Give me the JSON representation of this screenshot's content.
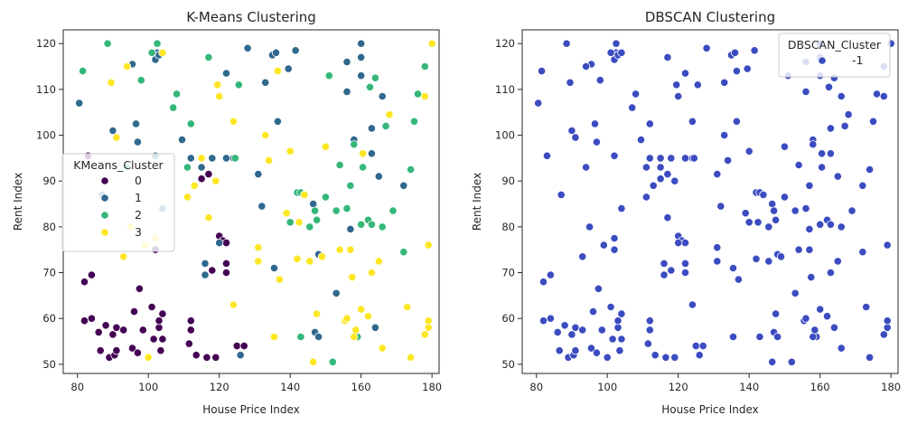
{
  "chart_data": [
    {
      "type": "scatter",
      "title": "K-Means Clustering",
      "xlabel": "House Price Index",
      "ylabel": "Rent Index",
      "xlim": [
        76,
        182
      ],
      "ylim": [
        48,
        123
      ],
      "xticks": [
        80,
        100,
        120,
        140,
        160,
        180
      ],
      "yticks": [
        50,
        60,
        70,
        80,
        90,
        100,
        110,
        120
      ],
      "grid": false,
      "legend": {
        "title": "KMeans_Cluster",
        "placement": "center-left"
      },
      "series": [
        {
          "name": "0",
          "color": "#440154",
          "points": [
            [
              82,
              59.5
            ],
            [
              82,
              68
            ],
            [
              83,
              95.5
            ],
            [
              84,
              60
            ],
            [
              84,
              69.5
            ],
            [
              86,
              57
            ],
            [
              86.5,
              53
            ],
            [
              88,
              58.5
            ],
            [
              89,
              51.5
            ],
            [
              90,
              56.5
            ],
            [
              90.5,
              52
            ],
            [
              91,
              53
            ],
            [
              91,
              58
            ],
            [
              93,
              57.5
            ],
            [
              95.5,
              53.5
            ],
            [
              96,
              61.5
            ],
            [
              97,
              52.5
            ],
            [
              97.5,
              66.5
            ],
            [
              98.5,
              57.5
            ],
            [
              99,
              76
            ],
            [
              101,
              62.5
            ],
            [
              101.5,
              55.5
            ],
            [
              102,
              75
            ],
            [
              103,
              58
            ],
            [
              103,
              59.5
            ],
            [
              103.5,
              53
            ],
            [
              104,
              55.5
            ],
            [
              104,
              61
            ],
            [
              111.5,
              54.5
            ],
            [
              112,
              59.5
            ],
            [
              112,
              57.5
            ],
            [
              113.5,
              52
            ],
            [
              115,
              90.5
            ],
            [
              116.5,
              51.5
            ],
            [
              117,
              91.5
            ],
            [
              118,
              70.5
            ],
            [
              119,
              51.5
            ],
            [
              120,
              78
            ],
            [
              121,
              77
            ],
            [
              122,
              70
            ],
            [
              122,
              72
            ],
            [
              122,
              76.5
            ],
            [
              125,
              54
            ],
            [
              127,
              54
            ]
          ]
        },
        {
          "name": "1",
          "color": "#31688e",
          "points": [
            [
              80.5,
              107
            ],
            [
              87,
              87
            ],
            [
              90,
              101
            ],
            [
              95.5,
              115.5
            ],
            [
              96.5,
              102.5
            ],
            [
              97,
              98.5
            ],
            [
              102,
              95.5
            ],
            [
              102,
              116.5
            ],
            [
              102.5,
              118
            ],
            [
              103,
              117.5
            ],
            [
              104,
              84
            ],
            [
              109.5,
              99
            ],
            [
              112,
              95
            ],
            [
              115,
              93
            ],
            [
              116,
              69.5
            ],
            [
              116,
              72
            ],
            [
              118,
              95
            ],
            [
              120,
              76.5
            ],
            [
              122,
              95
            ],
            [
              122,
              113.5
            ],
            [
              124,
              95
            ],
            [
              126,
              52
            ],
            [
              128,
              119
            ],
            [
              131,
              91.5
            ],
            [
              132,
              84.5
            ],
            [
              133,
              111.5
            ],
            [
              135,
              117.5
            ],
            [
              135.5,
              71
            ],
            [
              136.5,
              103
            ],
            [
              136,
              118
            ],
            [
              139.5,
              114.5
            ],
            [
              141.5,
              118.5
            ],
            [
              146.5,
              85
            ],
            [
              147,
              57
            ],
            [
              148,
              56
            ],
            [
              148,
              74
            ],
            [
              153,
              65.5
            ],
            [
              156,
              116
            ],
            [
              156,
              109.5
            ],
            [
              157,
              79.5
            ],
            [
              158,
              99
            ],
            [
              160,
              120
            ],
            [
              160,
              117
            ],
            [
              160,
              113
            ],
            [
              163,
              101.5
            ],
            [
              163,
              96
            ],
            [
              164,
              58
            ],
            [
              165,
              91
            ],
            [
              166,
              108.5
            ],
            [
              172,
              89
            ],
            [
              178,
              56.5
            ]
          ]
        },
        {
          "name": "2",
          "color": "#35b779",
          "points": [
            [
              81.5,
              114
            ],
            [
              88.5,
              120
            ],
            [
              94,
              93
            ],
            [
              98,
              112
            ],
            [
              101,
              118
            ],
            [
              102.5,
              120
            ],
            [
              107,
              106
            ],
            [
              108,
              109
            ],
            [
              111,
              93
            ],
            [
              112,
              102.5
            ],
            [
              117,
              117
            ],
            [
              124.5,
              95
            ],
            [
              125.5,
              111
            ],
            [
              140,
              81
            ],
            [
              142,
              87.5
            ],
            [
              143,
              87.5
            ],
            [
              143,
              56
            ],
            [
              145.5,
              80
            ],
            [
              147,
              83.5
            ],
            [
              147.5,
              81.5
            ],
            [
              150,
              86.5
            ],
            [
              151,
              113
            ],
            [
              152,
              50.5
            ],
            [
              153,
              83.5
            ],
            [
              154,
              93.5
            ],
            [
              156,
              84
            ],
            [
              157,
              89
            ],
            [
              158,
              98
            ],
            [
              159,
              56
            ],
            [
              160,
              80.5
            ],
            [
              160.5,
              93
            ],
            [
              162,
              81.5
            ],
            [
              162.5,
              110.5
            ],
            [
              163,
              80.5
            ],
            [
              164,
              112.5
            ],
            [
              166,
              80
            ],
            [
              167,
              102
            ],
            [
              169,
              83.5
            ],
            [
              172,
              74.5
            ],
            [
              174,
              92.5
            ],
            [
              175,
              103
            ],
            [
              176,
              109
            ],
            [
              178,
              115
            ]
          ]
        },
        {
          "name": "3",
          "color": "#fde725",
          "points": [
            [
              89.5,
              111.5
            ],
            [
              91,
              99.5
            ],
            [
              93,
              73.5
            ],
            [
              94,
              115
            ],
            [
              95,
              80
            ],
            [
              99,
              76
            ],
            [
              100,
              51.5
            ],
            [
              102,
              77.5
            ],
            [
              104,
              118
            ],
            [
              111,
              86.5
            ],
            [
              113,
              89
            ],
            [
              115,
              95
            ],
            [
              117,
              82
            ],
            [
              119,
              90
            ],
            [
              119.5,
              111
            ],
            [
              120,
              108.5
            ],
            [
              124,
              103
            ],
            [
              124,
              63
            ],
            [
              131,
              75.5
            ],
            [
              131,
              72.5
            ],
            [
              133,
              100
            ],
            [
              134,
              94.5
            ],
            [
              135.5,
              56
            ],
            [
              136.5,
              114
            ],
            [
              137,
              68.5
            ],
            [
              139,
              83
            ],
            [
              140,
              96.5
            ],
            [
              142,
              73
            ],
            [
              142.5,
              81
            ],
            [
              144,
              87
            ],
            [
              145.5,
              72.5
            ],
            [
              146.5,
              50.5
            ],
            [
              147.5,
              61
            ],
            [
              149,
              73.5
            ],
            [
              150,
              97.5
            ],
            [
              154,
              75
            ],
            [
              155.5,
              59.5
            ],
            [
              156,
              60
            ],
            [
              157,
              75
            ],
            [
              157.5,
              69
            ],
            [
              158,
              56
            ],
            [
              158.5,
              57.5
            ],
            [
              160,
              62
            ],
            [
              160.5,
              96
            ],
            [
              162,
              60.5
            ],
            [
              163,
              70
            ],
            [
              165,
              72.5
            ],
            [
              166,
              53.5
            ],
            [
              168,
              104.5
            ],
            [
              173,
              62.5
            ],
            [
              174,
              51.5
            ],
            [
              178,
              108.5
            ],
            [
              178,
              56.5
            ],
            [
              179,
              58
            ],
            [
              179,
              59.5
            ],
            [
              180,
              120
            ],
            [
              179,
              76
            ]
          ]
        }
      ]
    },
    {
      "type": "scatter",
      "title": "DBSCAN Clustering",
      "xlabel": "House Price Index",
      "ylabel": "Rent Index",
      "xlim": [
        76,
        182
      ],
      "ylim": [
        48,
        123
      ],
      "xticks": [
        80,
        100,
        120,
        140,
        160,
        180
      ],
      "yticks": [
        50,
        60,
        70,
        80,
        90,
        100,
        110,
        120
      ],
      "grid": false,
      "legend": {
        "title": "DBSCAN_Cluster",
        "placement": "top-right"
      },
      "series": [
        {
          "name": "-1",
          "color": "#3b4cc0",
          "points": "all"
        }
      ]
    }
  ]
}
